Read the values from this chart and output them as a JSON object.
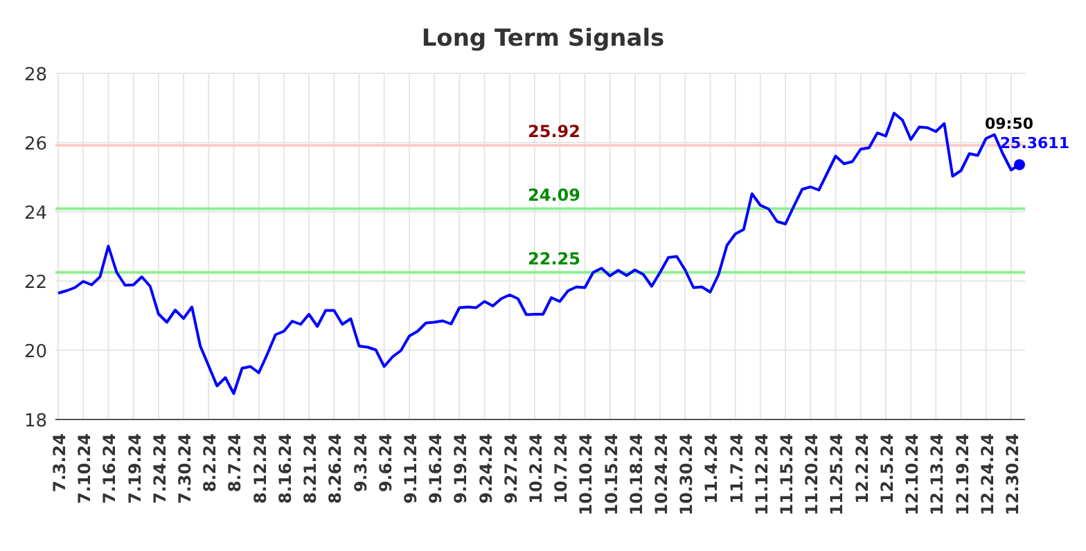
{
  "chart_data": {
    "type": "line",
    "title": "Long Term Signals",
    "categories": [
      "7.3.24",
      null,
      null,
      "7.10.24",
      null,
      null,
      "7.16.24",
      null,
      null,
      "7.19.24",
      null,
      null,
      "7.24.24",
      null,
      null,
      "7.30.24",
      null,
      null,
      "8.2.24",
      null,
      null,
      "8.7.24",
      null,
      null,
      "8.12.24",
      null,
      null,
      "8.16.24",
      null,
      null,
      "8.21.24",
      null,
      null,
      "8.26.24",
      null,
      null,
      "9.3.24",
      null,
      null,
      "9.6.24",
      null,
      null,
      "9.11.24",
      null,
      null,
      "9.16.24",
      null,
      null,
      "9.19.24",
      null,
      null,
      "9.24.24",
      null,
      null,
      "9.27.24",
      null,
      null,
      "10.2.24",
      null,
      null,
      "10.7.24",
      null,
      null,
      "10.10.24",
      null,
      null,
      "10.15.24",
      null,
      null,
      "10.18.24",
      null,
      null,
      "10.24.24",
      null,
      null,
      "10.30.24",
      null,
      null,
      "11.4.24",
      null,
      null,
      "11.7.24",
      null,
      null,
      "11.12.24",
      null,
      null,
      "11.15.24",
      null,
      null,
      "11.20.24",
      null,
      null,
      "11.25.24",
      null,
      null,
      "12.2.24",
      null,
      null,
      "12.5.24",
      null,
      null,
      "12.10.24",
      null,
      null,
      "12.13.24",
      null,
      null,
      "12.19.24",
      null,
      null,
      "12.24.24",
      null,
      null,
      "12.30.24",
      null
    ],
    "series": [
      {
        "color": "#0000ff",
        "values": [
          21.65,
          21.72,
          21.81,
          21.99,
          21.89,
          22.12,
          23.01,
          22.25,
          21.88,
          21.89,
          22.12,
          21.85,
          21.05,
          20.81,
          21.16,
          20.92,
          21.25,
          20.12,
          19.55,
          18.97,
          19.21,
          18.75,
          19.48,
          19.53,
          19.35,
          19.88,
          20.45,
          20.55,
          20.84,
          20.75,
          21.04,
          20.69,
          21.15,
          21.15,
          20.75,
          20.91,
          20.12,
          20.09,
          20.01,
          19.53,
          19.81,
          19.99,
          20.41,
          20.55,
          20.79,
          20.81,
          20.85,
          20.76,
          21.23,
          21.25,
          21.23,
          21.41,
          21.28,
          21.49,
          21.6,
          21.49,
          21.03,
          21.04,
          21.04,
          21.52,
          21.41,
          21.72,
          21.83,
          21.81,
          22.25,
          22.37,
          22.15,
          22.31,
          22.16,
          22.32,
          22.19,
          21.85,
          22.25,
          22.68,
          22.71,
          22.32,
          21.81,
          21.83,
          21.68,
          22.19,
          23.03,
          23.36,
          23.49,
          24.52,
          24.19,
          24.08,
          23.72,
          23.65,
          24.16,
          24.65,
          24.72,
          24.63,
          25.12,
          25.61,
          25.39,
          25.45,
          25.81,
          25.85,
          26.28,
          26.19,
          26.85,
          26.65,
          26.09,
          26.45,
          26.43,
          26.32,
          26.55,
          25.03,
          25.19,
          25.68,
          25.63,
          26.12,
          26.23,
          25.68,
          25.21,
          25.3611
        ]
      }
    ],
    "ylim": [
      18,
      28
    ],
    "yticks": [
      18,
      20,
      22,
      24,
      26,
      28
    ],
    "grid": true,
    "marker": "none",
    "line_style": "solid",
    "ref_lines": [
      {
        "axis": "y",
        "value": 25.92,
        "label": "25.92",
        "color": "#ffcccc"
      },
      {
        "axis": "y",
        "value": 24.09,
        "label": "24.09",
        "color": "#90ee90"
      },
      {
        "axis": "y",
        "value": 22.25,
        "label": "22.25",
        "color": "#90ee90"
      }
    ],
    "annotations": [
      "09:50",
      "25.3611"
    ]
  }
}
